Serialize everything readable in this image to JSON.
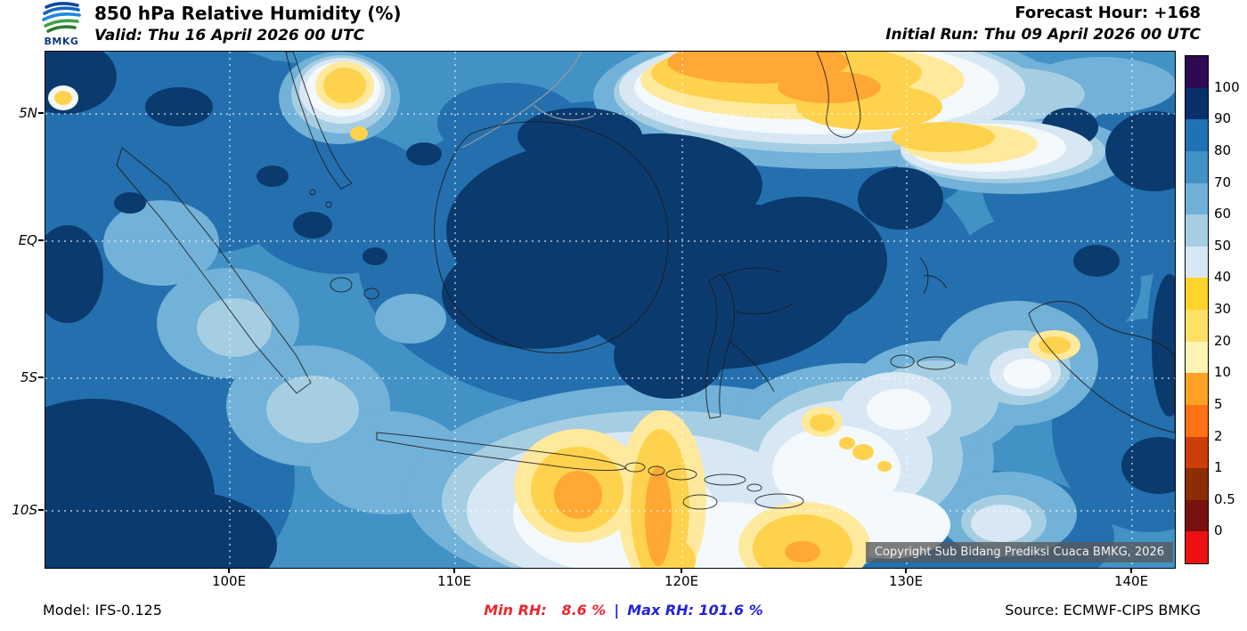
{
  "header": {
    "logo_text": "BMKG",
    "title": "850 hPa Relative Humidity (%)",
    "valid": "Valid: Thu 16 April 2026 00 UTC",
    "forecast_hour": "Forecast Hour: +168",
    "initial_run": "Initial Run: Thu 09 April 2026 00 UTC"
  },
  "map": {
    "lat_labels": [
      "5N",
      "EQ",
      "5S",
      "10S"
    ],
    "lon_labels": [
      "100E",
      "110E",
      "120E",
      "130E",
      "140E"
    ],
    "copyright": "Copyright Sub Bidang Prediksi Cuaca BMKG, 2026"
  },
  "colorbar": {
    "ticks": [
      "100",
      "90",
      "80",
      "70",
      "60",
      "50",
      "40",
      "30",
      "20",
      "10",
      "5",
      "2",
      "1",
      "0.5",
      "0"
    ],
    "colors": [
      "#2d0a52",
      "#08306b",
      "#2171b5",
      "#4292c6",
      "#6fb0d8",
      "#a6cee3",
      "#d7e8f4",
      "#ffd32a",
      "#ffe066",
      "#fff3b4",
      "#ffa126",
      "#ff7214",
      "#cc3d08",
      "#8c2d04",
      "#7a1010",
      "#ee1111"
    ]
  },
  "footer": {
    "model": "Model: IFS-0.125",
    "min_rh": "Min RH:   8.6 %",
    "separator": "|",
    "max_rh": "Max RH: 101.6 %",
    "source": "Source: ECMWF-CIPS BMKG"
  }
}
